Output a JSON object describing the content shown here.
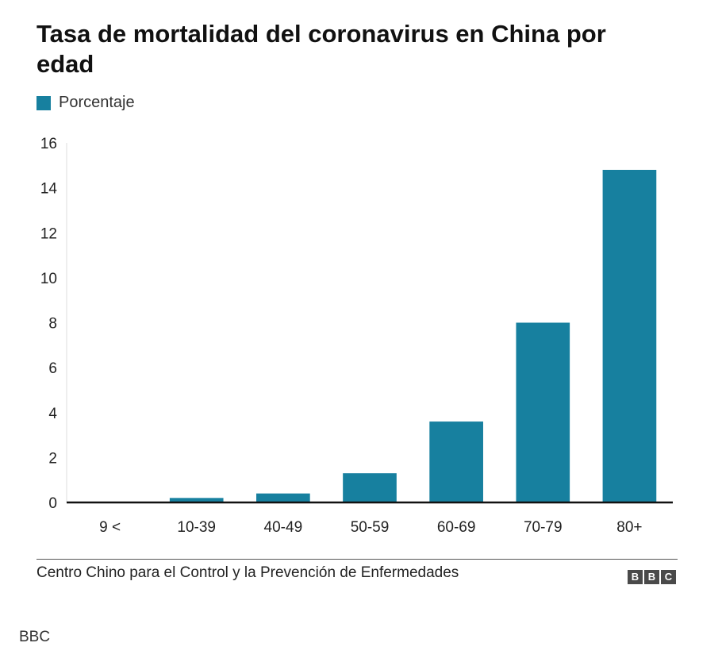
{
  "title": "Tasa de mortalidad del coronavirus en China por edad",
  "legend_label": "Porcentaje",
  "source": "Centro Chino para el Control y la Prevención de Enfermedades",
  "logo_letters": [
    "B",
    "B",
    "C"
  ],
  "footer_credit": "BBC",
  "colors": {
    "bar": "#17809f",
    "axis": "#111111",
    "text": "#222222"
  },
  "chart_data": {
    "type": "bar",
    "title": "Tasa de mortalidad del coronavirus en China por edad",
    "categories": [
      "9 <",
      "10-39",
      "40-49",
      "50-59",
      "60-69",
      "70-79",
      "80+"
    ],
    "series": [
      {
        "name": "Porcentaje",
        "values": [
          0,
          0.2,
          0.4,
          1.3,
          3.6,
          8.0,
          14.8
        ]
      }
    ],
    "ylim": [
      0,
      16
    ],
    "yticks": [
      0,
      2,
      4,
      6,
      8,
      10,
      12,
      14,
      16
    ],
    "xlabel": "",
    "ylabel": "",
    "grid": false,
    "legend_position": "top-left"
  }
}
